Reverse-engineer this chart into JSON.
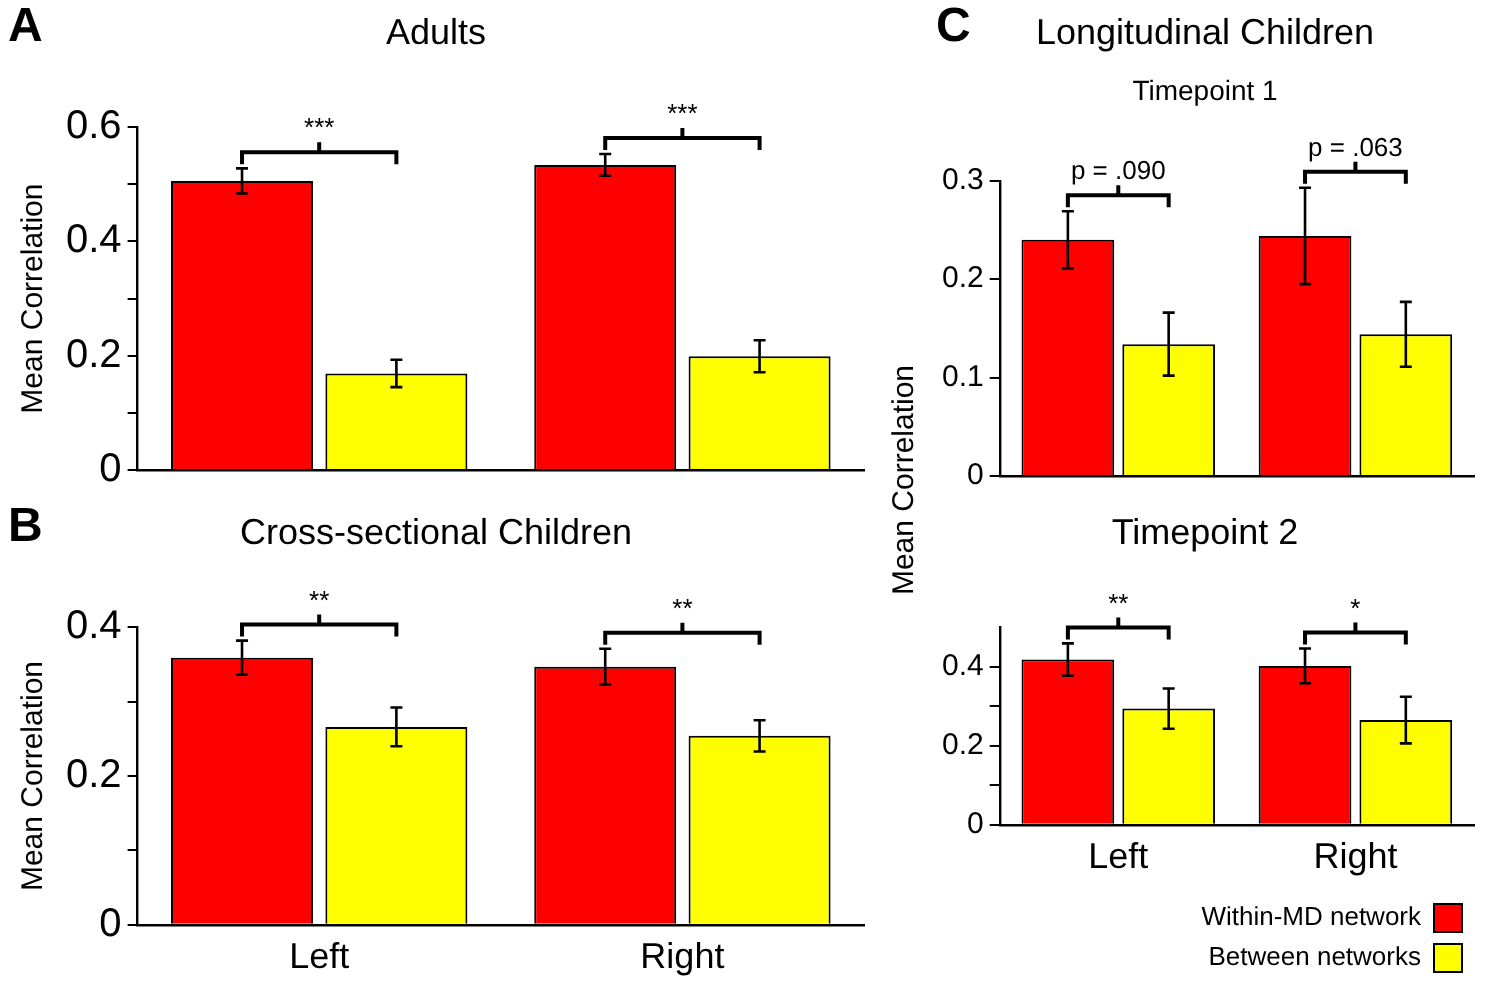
{
  "chart_data": [
    {
      "type": "bar",
      "title": "Adults",
      "ylabel": "Mean Correlation",
      "categories": [
        null,
        null
      ],
      "series": [
        {
          "color": "#ff0000",
          "values": [
            0.506,
            0.534
          ],
          "errors": [
            0.022,
            0.019
          ]
        },
        {
          "color": "#ffff00",
          "values": [
            0.169,
            0.199
          ],
          "errors": [
            0.024,
            0.028
          ]
        }
      ],
      "ylim": [
        0,
        0.6
      ],
      "yticks": [
        0,
        {
          "value": 0.1,
          "label": null
        },
        0.2,
        {
          "value": 0.3,
          "label": null
        },
        0.4,
        {
          "value": 0.5,
          "label": null
        },
        0.6
      ],
      "tick_labels": "y",
      "annotations": [
        "A",
        "***",
        "***"
      ]
    },
    {
      "type": "bar",
      "title": "Cross-sectional Children",
      "ylabel": "Mean Correlation",
      "categories": [
        "Left",
        "Right"
      ],
      "series": [
        {
          "color": "#ff0000",
          "values": [
            0.359,
            0.347
          ],
          "errors": [
            0.023,
            0.024
          ]
        },
        {
          "color": "#ffff00",
          "values": [
            0.266,
            0.254
          ],
          "errors": [
            0.026,
            0.021
          ]
        }
      ],
      "ylim": [
        0,
        0.4
      ],
      "yticks": [
        0,
        {
          "value": 0.1,
          "label": null
        },
        0.2,
        {
          "value": 0.3,
          "label": null
        },
        0.4
      ],
      "annotations": [
        "B",
        "**",
        "**"
      ]
    },
    {
      "type": "bar",
      "title": "Longitudinal Children",
      "subtitle": "Timepoint 1",
      "ylabel": "Mean Correlation",
      "categories": [
        null,
        null
      ],
      "series": [
        {
          "color": "#ff0000",
          "values": [
            0.24,
            0.244
          ],
          "errors": [
            0.029,
            0.049
          ]
        },
        {
          "color": "#ffff00",
          "values": [
            0.134,
            0.144
          ],
          "errors": [
            0.032,
            0.033
          ]
        }
      ],
      "ylim": [
        0,
        0.3
      ],
      "yticks": [
        0,
        0.1,
        0.2,
        0.3
      ],
      "tick_labels": "y",
      "annotations": [
        "C",
        "p = .090",
        "p = .063"
      ]
    },
    {
      "type": "bar",
      "title": "Timepoint 2",
      "categories": [
        "Left",
        "Right"
      ],
      "series": [
        {
          "name": "Within-MD network",
          "color": "#ff0000",
          "values": [
            0.418,
            0.402
          ],
          "errors": [
            0.041,
            0.044
          ]
        },
        {
          "name": "Between networks",
          "color": "#ffff00",
          "values": [
            0.294,
            0.265
          ],
          "errors": [
            0.051,
            0.059
          ]
        }
      ],
      "ylim": [
        0,
        0.5
      ],
      "yticks": [
        0,
        {
          "value": 0.1,
          "label": null
        },
        0.2,
        {
          "value": 0.3,
          "label": null
        },
        0.4
      ],
      "legend": "bottom right",
      "annotations": [
        "**",
        "*"
      ]
    }
  ]
}
